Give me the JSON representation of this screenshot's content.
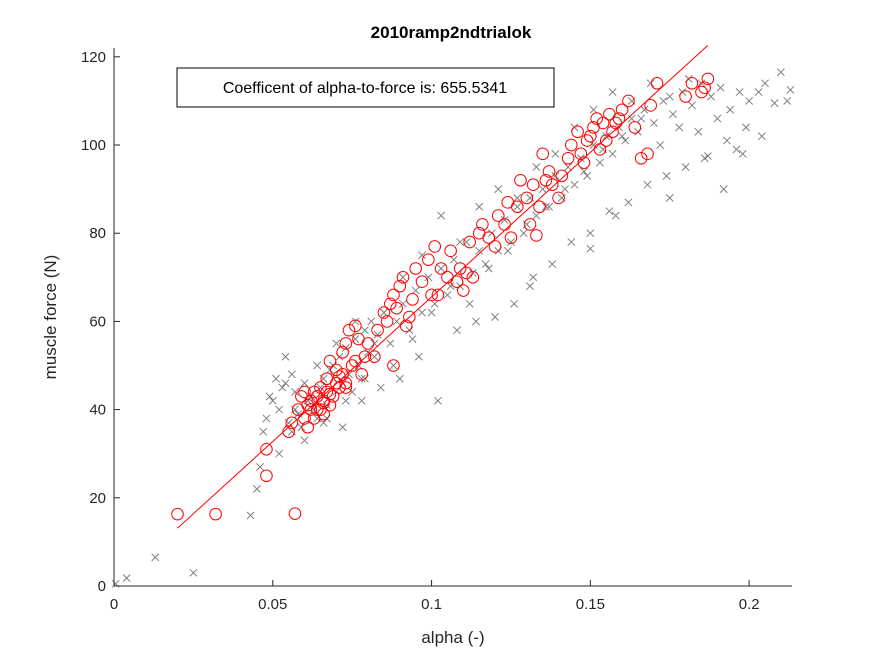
{
  "chart_data": {
    "type": "scatter",
    "title": "2010ramp2ndtrialok",
    "xlabel": "alpha (-)",
    "ylabel": "muscle force (N)",
    "xlim": [
      0,
      0.2135
    ],
    "ylim": [
      0,
      122
    ],
    "xticks": [
      0,
      0.05,
      0.1,
      0.15,
      0.2
    ],
    "xtick_labels": [
      "0",
      "0.05",
      "0.1",
      "0.15",
      "0.2"
    ],
    "yticks": [
      0,
      20,
      40,
      60,
      80,
      100,
      120
    ],
    "ytick_labels": [
      "0",
      "20",
      "40",
      "60",
      "80",
      "100",
      "120"
    ],
    "annotation": "Coefficent of alpha-to-force is: 655.5341",
    "colors": {
      "cross": "#808080",
      "circle": "#ff0000",
      "fit": "#ff0000",
      "axis": "#262626"
    },
    "grid": false,
    "series": [
      {
        "marker": "x",
        "color": "#808080",
        "x": [
          0.0005,
          0.004,
          0.013,
          0.025,
          0.043,
          0.045,
          0.046,
          0.047,
          0.048,
          0.049,
          0.05,
          0.051,
          0.052,
          0.053,
          0.054,
          0.055,
          0.056,
          0.057,
          0.058,
          0.059,
          0.06,
          0.061,
          0.062,
          0.063,
          0.064,
          0.065,
          0.066,
          0.067,
          0.068,
          0.069,
          0.07,
          0.071,
          0.072,
          0.073,
          0.074,
          0.075,
          0.076,
          0.077,
          0.078,
          0.079,
          0.08,
          0.081,
          0.082,
          0.083,
          0.085,
          0.087,
          0.089,
          0.091,
          0.093,
          0.095,
          0.097,
          0.099,
          0.101,
          0.103,
          0.105,
          0.107,
          0.109,
          0.111,
          0.113,
          0.115,
          0.117,
          0.119,
          0.121,
          0.123,
          0.125,
          0.127,
          0.129,
          0.131,
          0.133,
          0.135,
          0.137,
          0.139,
          0.141,
          0.143,
          0.145,
          0.147,
          0.149,
          0.151,
          0.153,
          0.155,
          0.157,
          0.159,
          0.161,
          0.163,
          0.165,
          0.167,
          0.17,
          0.173,
          0.176,
          0.179,
          0.182,
          0.185,
          0.188,
          0.191,
          0.194,
          0.197,
          0.2,
          0.205,
          0.21,
          0.213,
          0.054,
          0.057,
          0.061,
          0.064,
          0.067,
          0.07,
          0.073,
          0.076,
          0.079,
          0.082,
          0.085,
          0.088,
          0.091,
          0.094,
          0.097,
          0.1,
          0.103,
          0.106,
          0.109,
          0.112,
          0.115,
          0.118,
          0.121,
          0.124,
          0.127,
          0.13,
          0.133,
          0.136,
          0.139,
          0.142,
          0.145,
          0.148,
          0.151,
          0.154,
          0.157,
          0.16,
          0.163,
          0.166,
          0.169,
          0.172,
          0.175,
          0.178,
          0.181,
          0.184,
          0.187,
          0.19,
          0.193,
          0.196,
          0.199,
          0.203,
          0.208,
          0.052,
          0.056,
          0.06,
          0.066,
          0.072,
          0.078,
          0.084,
          0.09,
          0.096,
          0.102,
          0.108,
          0.114,
          0.12,
          0.126,
          0.132,
          0.138,
          0.144,
          0.15,
          0.156,
          0.162,
          0.168,
          0.174,
          0.18,
          0.186,
          0.192,
          0.198,
          0.204,
          0.212,
          0.131,
          0.15,
          0.158,
          0.175
        ],
        "y": [
          0.5,
          1.8,
          6.5,
          3.0,
          16.0,
          22.0,
          27.0,
          35.0,
          38.0,
          43.0,
          42.0,
          47.0,
          40.0,
          45.0,
          46.0,
          37.0,
          48.0,
          44.0,
          39.0,
          36.0,
          46.0,
          42.0,
          43.0,
          40.0,
          38.0,
          45.0,
          47.0,
          41.0,
          49.0,
          50.0,
          44.0,
          52.0,
          46.0,
          54.0,
          48.0,
          44.0,
          56.0,
          50.0,
          47.0,
          58.0,
          53.0,
          60.0,
          55.0,
          57.0,
          62.0,
          55.0,
          60.0,
          64.0,
          58.0,
          67.0,
          62.0,
          70.0,
          64.0,
          72.0,
          66.0,
          74.0,
          68.0,
          78.0,
          71.0,
          76.0,
          73.0,
          80.0,
          76.0,
          83.0,
          78.0,
          86.0,
          80.0,
          88.0,
          84.0,
          90.0,
          86.0,
          93.0,
          88.0,
          95.0,
          91.0,
          97.0,
          93.0,
          100.0,
          96.0,
          102.0,
          98.0,
          104.0,
          101.0,
          106.0,
          103.0,
          108.0,
          105.0,
          110.0,
          107.0,
          112.0,
          109.0,
          114.0,
          111.0,
          113.0,
          108.0,
          112.0,
          110.0,
          114.0,
          116.5,
          112.5,
          52.0,
          40.0,
          42.0,
          50.0,
          38.0,
          55.0,
          42.0,
          60.0,
          47.0,
          52.0,
          62.0,
          50.0,
          70.0,
          56.0,
          75.0,
          62.0,
          84.0,
          68.0,
          78.0,
          64.0,
          86.0,
          72.0,
          90.0,
          76.0,
          88.0,
          82.0,
          95.0,
          86.0,
          98.0,
          90.0,
          104.0,
          94.0,
          108.0,
          99.0,
          112.0,
          102.0,
          110.0,
          106.0,
          114.0,
          100.0,
          111.0,
          104.0,
          115.0,
          103.0,
          97.5,
          106.0,
          101.0,
          99.0,
          104.0,
          112.0,
          109.5,
          30.0,
          35.0,
          33.0,
          37.0,
          36.0,
          42.0,
          45.0,
          47.0,
          52.0,
          42.0,
          58.0,
          60.0,
          61.0,
          64.0,
          70.0,
          73.0,
          78.0,
          80.0,
          85.0,
          87.0,
          91.0,
          93.0,
          95.0,
          97.0,
          90.0,
          98.0,
          102.0,
          110.0,
          68.0,
          76.5,
          84.0,
          88.0
        ]
      },
      {
        "marker": "o",
        "color": "#ff0000",
        "x": [
          0.02,
          0.032,
          0.048,
          0.048,
          0.057,
          0.055,
          0.056,
          0.058,
          0.059,
          0.06,
          0.06,
          0.061,
          0.061,
          0.062,
          0.062,
          0.063,
          0.063,
          0.064,
          0.064,
          0.065,
          0.065,
          0.066,
          0.066,
          0.067,
          0.067,
          0.068,
          0.068,
          0.069,
          0.07,
          0.07,
          0.071,
          0.072,
          0.072,
          0.073,
          0.073,
          0.074,
          0.075,
          0.076,
          0.077,
          0.078,
          0.079,
          0.08,
          0.082,
          0.083,
          0.085,
          0.086,
          0.087,
          0.088,
          0.089,
          0.09,
          0.091,
          0.092,
          0.094,
          0.095,
          0.097,
          0.099,
          0.1,
          0.101,
          0.103,
          0.105,
          0.106,
          0.108,
          0.109,
          0.11,
          0.112,
          0.113,
          0.115,
          0.116,
          0.118,
          0.12,
          0.121,
          0.123,
          0.124,
          0.125,
          0.127,
          0.128,
          0.13,
          0.131,
          0.132,
          0.133,
          0.134,
          0.135,
          0.136,
          0.137,
          0.138,
          0.14,
          0.141,
          0.143,
          0.144,
          0.146,
          0.147,
          0.148,
          0.149,
          0.15,
          0.151,
          0.152,
          0.153,
          0.154,
          0.155,
          0.156,
          0.157,
          0.158,
          0.159,
          0.16,
          0.162,
          0.164,
          0.166,
          0.168,
          0.169,
          0.171,
          0.18,
          0.182,
          0.185,
          0.186,
          0.187,
          0.066,
          0.068,
          0.071,
          0.073,
          0.076,
          0.088,
          0.093,
          0.102,
          0.111
        ],
        "y": [
          16.3,
          16.3,
          25.0,
          31.0,
          16.4,
          35.0,
          37.0,
          40.0,
          43.0,
          38.0,
          44.0,
          41.0,
          36.0,
          42.0,
          40.0,
          44.0,
          38.0,
          40.0,
          43.0,
          45.0,
          40.0,
          42.0,
          39.0,
          47.0,
          44.0,
          41.0,
          51.0,
          43.0,
          46.0,
          49.0,
          45.0,
          48.0,
          53.0,
          46.0,
          55.0,
          58.0,
          50.0,
          59.0,
          56.0,
          48.0,
          52.0,
          55.0,
          52.0,
          58.0,
          62.0,
          60.0,
          64.0,
          66.0,
          63.0,
          68.0,
          70.0,
          59.0,
          65.0,
          72.0,
          69.0,
          74.0,
          66.0,
          77.0,
          72.0,
          70.0,
          76.0,
          69.0,
          72.0,
          67.0,
          78.0,
          70.0,
          80.0,
          82.0,
          79.0,
          77.0,
          84.0,
          82.0,
          87.0,
          79.0,
          86.0,
          92.0,
          88.0,
          82.0,
          91.0,
          79.5,
          86.0,
          98.0,
          92.0,
          94.0,
          91.0,
          88.0,
          93.0,
          97.0,
          100.0,
          103.0,
          98.0,
          96.0,
          101.0,
          102.0,
          104.0,
          106.0,
          99.0,
          105.0,
          101.0,
          107.0,
          103.0,
          105.0,
          106.0,
          108.0,
          110.0,
          104.0,
          97.0,
          98.0,
          109.0,
          114.0,
          111.0,
          114.0,
          112.0,
          113.0,
          115.0,
          41.5,
          43.5,
          47.5,
          45.0,
          51.0,
          50.0,
          61.0,
          66.0,
          71.0
        ]
      }
    ],
    "fit_line": {
      "slope": 655.5341,
      "x": [
        0.02,
        0.187
      ]
    }
  }
}
